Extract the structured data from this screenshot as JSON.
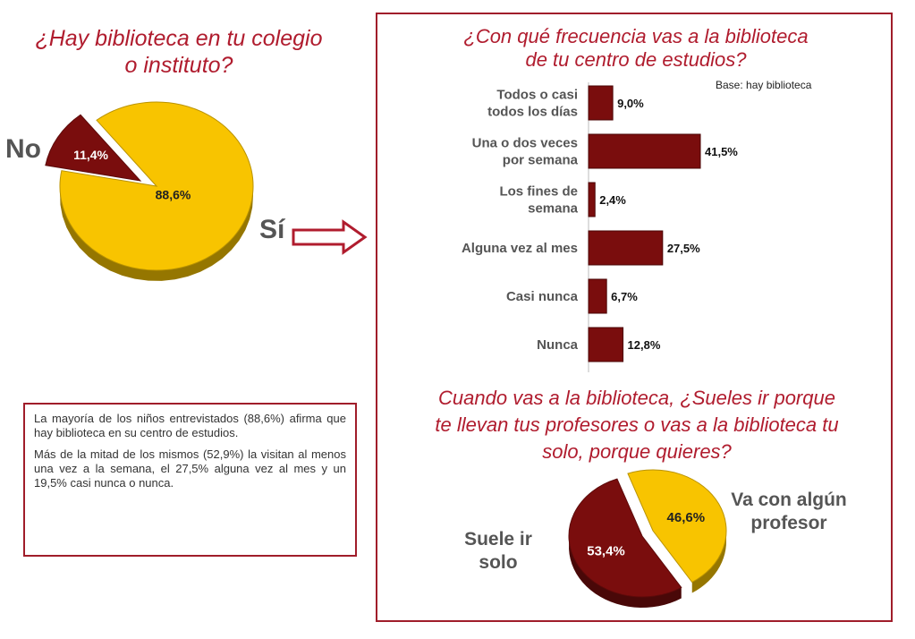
{
  "chart_data": [
    {
      "type": "pie",
      "title_lines": [
        "¿Hay biblioteca en tu colegio",
        "o instituto?"
      ],
      "slices": [
        {
          "name": "Sí",
          "value": 88.6,
          "label": "88,6%",
          "color": "#f8c400"
        },
        {
          "name": "No",
          "value": 11.4,
          "label": "11,4%",
          "color": "#7a0d0d"
        }
      ]
    },
    {
      "type": "bar",
      "orientation": "horizontal",
      "title_lines": [
        "¿Con qué frecuencia vas a la biblioteca",
        "de tu centro de estudios?"
      ],
      "base_note": "Base: hay biblioteca",
      "categories": [
        [
          "Todos o casi",
          "todos los días"
        ],
        [
          "Una o dos veces",
          "por semana"
        ],
        [
          "Los fines de",
          "semana"
        ],
        [
          "Alguna vez al mes"
        ],
        [
          "Casi nunca"
        ],
        [
          "Nunca"
        ]
      ],
      "values": [
        9.0,
        41.5,
        2.4,
        27.5,
        6.7,
        12.8
      ],
      "value_labels": [
        "9,0%",
        "41,5%",
        "2,4%",
        "27,5%",
        "6,7%",
        "12,8%"
      ],
      "color": "#7a0d0d"
    },
    {
      "type": "pie",
      "title_lines": [
        "Cuando vas a la biblioteca, ¿Sueles ir porque",
        "te llevan tus profesores o vas a la biblioteca tu",
        "solo, porque quieres?"
      ],
      "slices": [
        {
          "name_lines": [
            "Va con algún",
            "profesor"
          ],
          "value": 46.6,
          "label": "46,6%",
          "color": "#f8c400"
        },
        {
          "name_lines": [
            "Suele ir",
            "solo"
          ],
          "value": 53.4,
          "label": "53,4%",
          "color": "#7a0d0d"
        }
      ]
    }
  ],
  "note": {
    "paragraphs": [
      "La mayoría de los niños entrevistados (88,6%) afirma que hay biblioteca en su centro de estudios.",
      "Más de la mitad de los mismos (52,9%) la visitan al menos una vez a la semana, el 27,5% alguna vez al mes y un 19,5% casi nunca o nunca."
    ]
  }
}
